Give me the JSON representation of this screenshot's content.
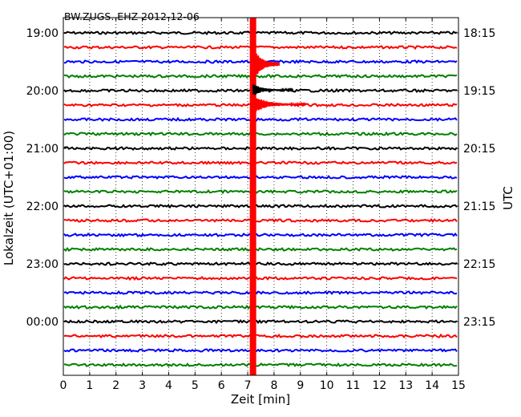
{
  "chart_data": {
    "type": "line",
    "title": "BW.ZUGS..EHZ 2012-12-06",
    "xlabel": "Zeit  [min]",
    "ylabel_left": "Lokalzeit (UTC+01:00)",
    "ylabel_right": "UTC",
    "xlim": [
      0,
      15
    ],
    "x_ticks": [
      "0",
      "1",
      "2",
      "3",
      "4",
      "5",
      "6",
      "7",
      "8",
      "9",
      "10",
      "11",
      "12",
      "13",
      "14",
      "15"
    ],
    "left_tick_labels": [
      "19:00",
      "20:00",
      "21:00",
      "22:00",
      "23:00",
      "00:00"
    ],
    "right_tick_labels": [
      "18:15",
      "19:15",
      "20:15",
      "21:15",
      "22:15",
      "23:15"
    ],
    "trace_colors": [
      "#000000",
      "#ff0000",
      "#0000ff",
      "#008000"
    ],
    "trace_count": 24,
    "minutes_per_trace": 15,
    "event_minute": 7.2,
    "grid": true
  }
}
